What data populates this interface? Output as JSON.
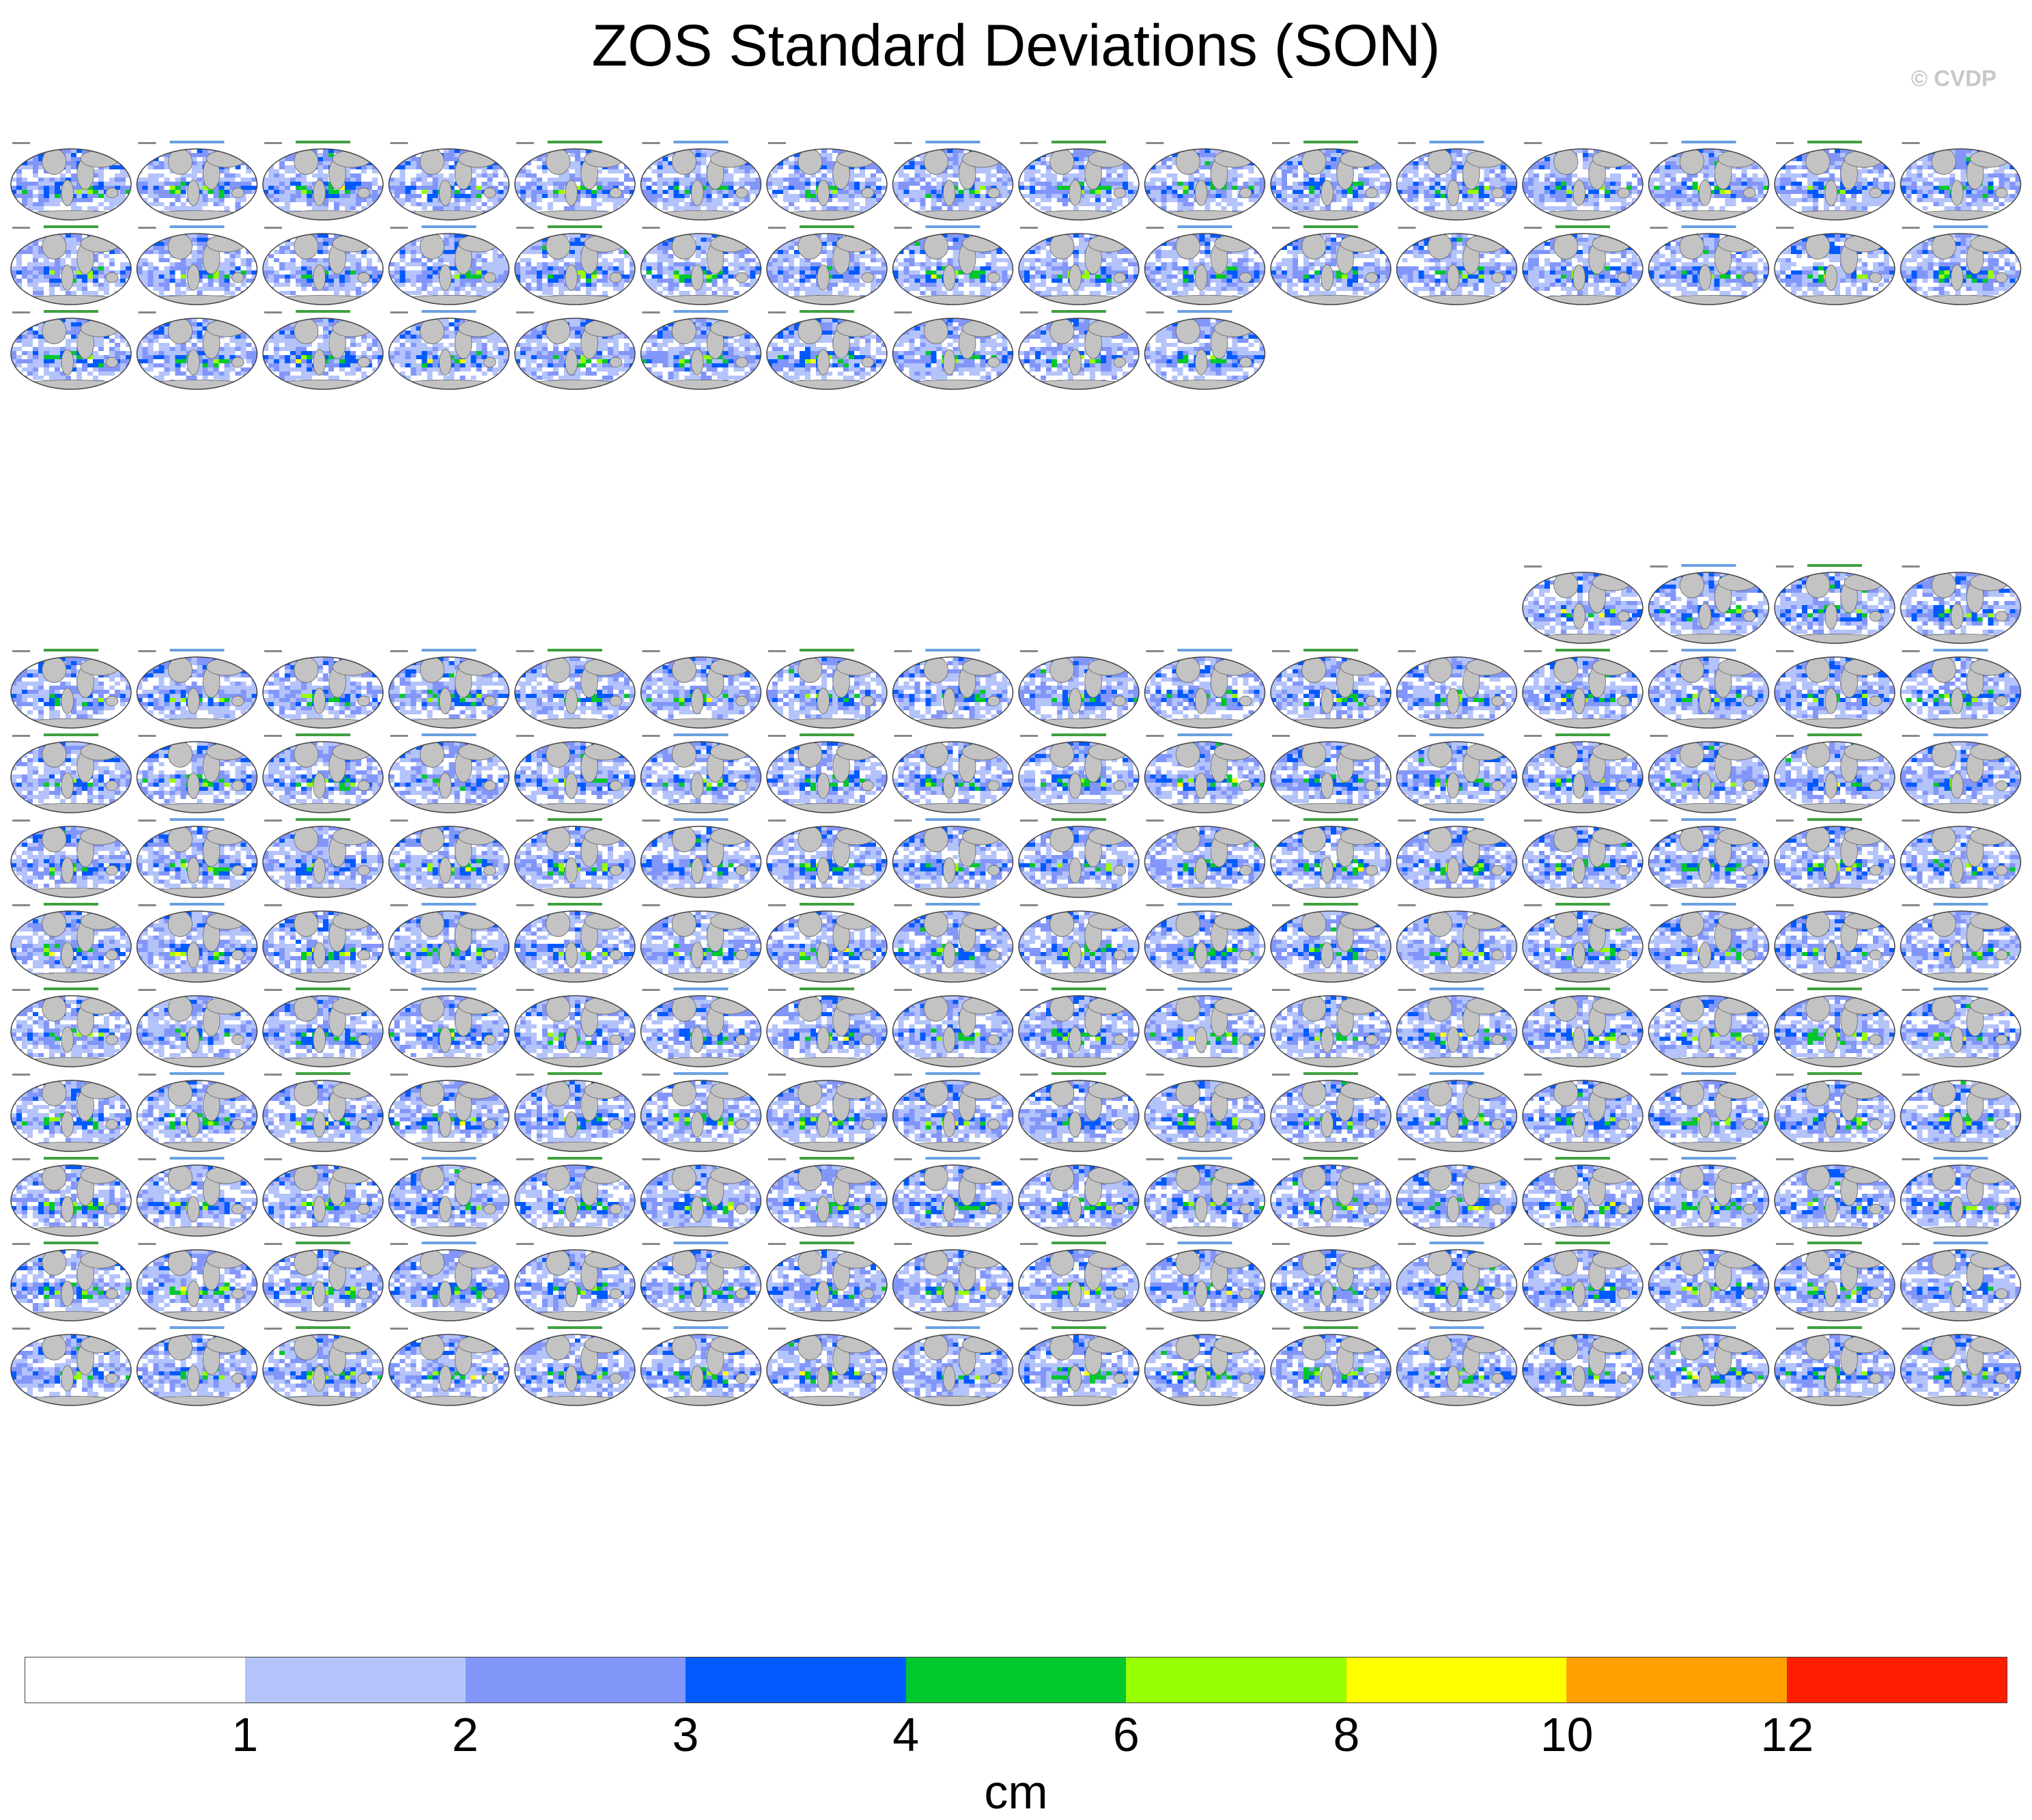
{
  "title": "ZOS Standard Deviations (SON)",
  "credit": "© CVDP",
  "colorbar": {
    "units": "cm",
    "tick_labels": [
      "1",
      "2",
      "3",
      "4",
      "6",
      "8",
      "10",
      "12"
    ],
    "colors": [
      "#ffffff",
      "#b4c3fa",
      "#8296fa",
      "#005aff",
      "#00c82d",
      "#96ff00",
      "#ffff00",
      "#ffa000",
      "#ff1e00"
    ]
  },
  "map_style": {
    "land_color": "#c3c3c3",
    "ocean_low_color": "#b4c3fa",
    "outline_color": "#444444"
  },
  "groups": [
    {
      "name": "top",
      "rows": [
        16,
        16,
        10
      ]
    },
    {
      "name": "bottom",
      "rows": [
        4,
        16,
        16,
        16,
        16,
        16,
        16,
        16,
        16,
        16
      ]
    }
  ]
}
